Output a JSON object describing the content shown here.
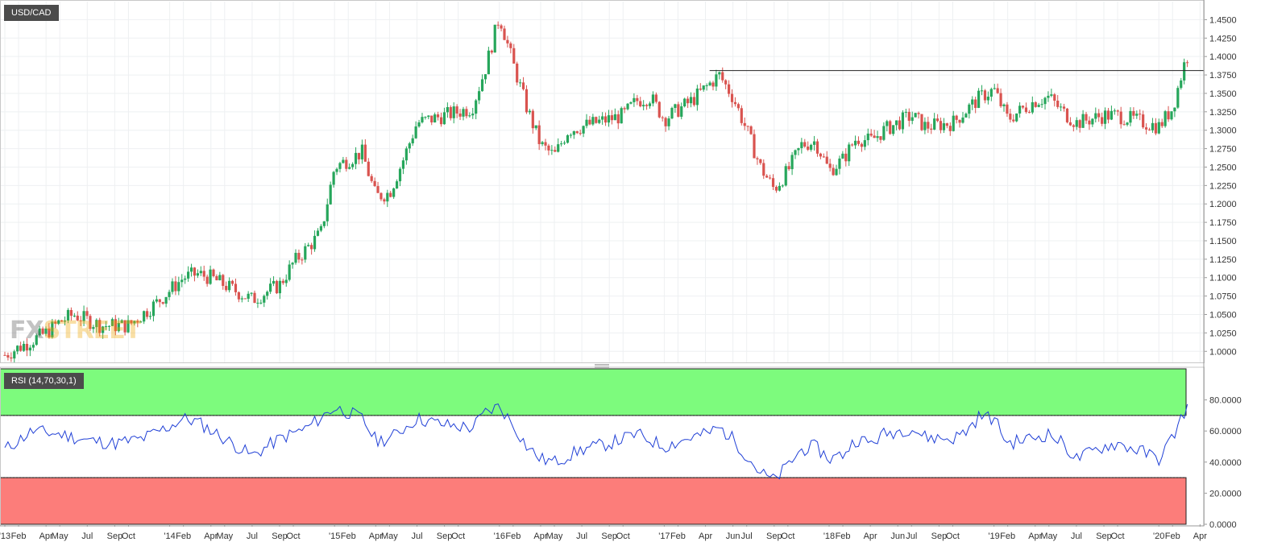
{
  "colors": {
    "up": "#26a65b",
    "down": "#d9534f",
    "rsi_line": "#1f3fd6",
    "overbought_fill": "#7dfb7d",
    "oversold_fill": "#fc7d7a",
    "grid": "#eef0f2",
    "axis_text": "#333333",
    "watermark_fx": "#555555",
    "watermark_street": "#f0a500"
  },
  "watermark": {
    "fx": "FX",
    "street": "STREET"
  },
  "chart_data": [
    {
      "type": "candlestick",
      "title": "USD/CAD",
      "frequency": "weekly",
      "y_ticks": [
        "1.0000",
        "1.0250",
        "1.0500",
        "1.0750",
        "1.1000",
        "1.1250",
        "1.1500",
        "1.1750",
        "1.2000",
        "1.2250",
        "1.2500",
        "1.2750",
        "1.3000",
        "1.3250",
        "1.3500",
        "1.3750",
        "1.4000",
        "1.4250",
        "1.4500"
      ],
      "ylim": [
        0.985,
        1.4745
      ],
      "horizontal_line": {
        "value": 1.381,
        "from": "'17 Apr",
        "to": "'20 Mar"
      },
      "anchors": [
        {
          "month": 0,
          "close": 0.995
        },
        {
          "month": 3,
          "close": 1.025
        },
        {
          "month": 4,
          "close": 1.04
        },
        {
          "month": 5,
          "close": 1.05
        },
        {
          "month": 7,
          "close": 1.035
        },
        {
          "month": 9,
          "close": 1.035
        },
        {
          "month": 11,
          "close": 1.065
        },
        {
          "month": 13,
          "close": 1.1
        },
        {
          "month": 14,
          "close": 1.105
        },
        {
          "month": 15,
          "close": 1.1
        },
        {
          "month": 16,
          "close": 1.09
        },
        {
          "month": 18,
          "close": 1.07
        },
        {
          "month": 20,
          "close": 1.09
        },
        {
          "month": 21,
          "close": 1.12
        },
        {
          "month": 23,
          "close": 1.16
        },
        {
          "month": 24,
          "close": 1.25
        },
        {
          "month": 25,
          "close": 1.26
        },
        {
          "month": 26,
          "close": 1.27
        },
        {
          "month": 27,
          "close": 1.21
        },
        {
          "month": 28,
          "close": 1.215
        },
        {
          "month": 29,
          "close": 1.26
        },
        {
          "month": 30,
          "close": 1.31
        },
        {
          "month": 32,
          "close": 1.32
        },
        {
          "month": 34,
          "close": 1.33
        },
        {
          "month": 35,
          "close": 1.385
        },
        {
          "month": 36,
          "close": 1.455
        },
        {
          "month": 37,
          "close": 1.39
        },
        {
          "month": 38,
          "close": 1.33
        },
        {
          "month": 39,
          "close": 1.28
        },
        {
          "month": 40,
          "close": 1.265
        },
        {
          "month": 41,
          "close": 1.3
        },
        {
          "month": 43,
          "close": 1.31
        },
        {
          "month": 45,
          "close": 1.32
        },
        {
          "month": 46,
          "close": 1.34
        },
        {
          "month": 47,
          "close": 1.345
        },
        {
          "month": 48,
          "close": 1.315
        },
        {
          "month": 50,
          "close": 1.34
        },
        {
          "month": 52,
          "close": 1.375
        },
        {
          "month": 53,
          "close": 1.345
        },
        {
          "month": 54,
          "close": 1.3
        },
        {
          "month": 55,
          "close": 1.25
        },
        {
          "month": 56,
          "close": 1.22
        },
        {
          "month": 57,
          "close": 1.245
        },
        {
          "month": 58,
          "close": 1.28
        },
        {
          "month": 59,
          "close": 1.285
        },
        {
          "month": 60,
          "close": 1.245
        },
        {
          "month": 61,
          "close": 1.26
        },
        {
          "month": 62,
          "close": 1.29
        },
        {
          "month": 63,
          "close": 1.285
        },
        {
          "month": 64,
          "close": 1.3
        },
        {
          "month": 66,
          "close": 1.32
        },
        {
          "month": 67,
          "close": 1.305
        },
        {
          "month": 69,
          "close": 1.31
        },
        {
          "month": 71,
          "close": 1.345
        },
        {
          "month": 72,
          "close": 1.355
        },
        {
          "month": 73,
          "close": 1.315
        },
        {
          "month": 75,
          "close": 1.34
        },
        {
          "month": 76,
          "close": 1.345
        },
        {
          "month": 77,
          "close": 1.325
        },
        {
          "month": 78,
          "close": 1.31
        },
        {
          "month": 80,
          "close": 1.32
        },
        {
          "month": 81,
          "close": 1.32
        },
        {
          "month": 83,
          "close": 1.31
        },
        {
          "month": 84,
          "close": 1.305
        },
        {
          "month": 85,
          "close": 1.33
        },
        {
          "month": 86,
          "close": 1.4
        }
      ],
      "rsi_14": [
        {
          "month": 0,
          "value": 48
        },
        {
          "month": 2,
          "value": 60
        },
        {
          "month": 4,
          "value": 58
        },
        {
          "month": 6,
          "value": 54
        },
        {
          "month": 8,
          "value": 52
        },
        {
          "month": 10,
          "value": 55
        },
        {
          "month": 12,
          "value": 63
        },
        {
          "month": 13,
          "value": 68
        },
        {
          "month": 14,
          "value": 66
        },
        {
          "month": 16,
          "value": 55
        },
        {
          "month": 18,
          "value": 44
        },
        {
          "month": 20,
          "value": 55
        },
        {
          "month": 22,
          "value": 62
        },
        {
          "month": 24,
          "value": 75
        },
        {
          "month": 25,
          "value": 72
        },
        {
          "month": 26,
          "value": 68
        },
        {
          "month": 27,
          "value": 54
        },
        {
          "month": 28,
          "value": 55
        },
        {
          "month": 30,
          "value": 68
        },
        {
          "month": 32,
          "value": 64
        },
        {
          "month": 34,
          "value": 62
        },
        {
          "month": 35,
          "value": 72
        },
        {
          "month": 36,
          "value": 76
        },
        {
          "month": 37,
          "value": 64
        },
        {
          "month": 38,
          "value": 50
        },
        {
          "month": 39,
          "value": 42
        },
        {
          "month": 40,
          "value": 40
        },
        {
          "month": 42,
          "value": 48
        },
        {
          "month": 44,
          "value": 52
        },
        {
          "month": 46,
          "value": 58
        },
        {
          "month": 48,
          "value": 50
        },
        {
          "month": 50,
          "value": 56
        },
        {
          "month": 51,
          "value": 58
        },
        {
          "month": 52,
          "value": 62
        },
        {
          "month": 53,
          "value": 55
        },
        {
          "month": 54,
          "value": 44
        },
        {
          "month": 55,
          "value": 33
        },
        {
          "month": 56,
          "value": 28
        },
        {
          "month": 57,
          "value": 38
        },
        {
          "month": 58,
          "value": 48
        },
        {
          "month": 59,
          "value": 50
        },
        {
          "month": 60,
          "value": 42
        },
        {
          "month": 61,
          "value": 45
        },
        {
          "month": 62,
          "value": 55
        },
        {
          "month": 63,
          "value": 52
        },
        {
          "month": 64,
          "value": 58
        },
        {
          "month": 66,
          "value": 62
        },
        {
          "month": 67,
          "value": 56
        },
        {
          "month": 69,
          "value": 55
        },
        {
          "month": 70,
          "value": 60
        },
        {
          "month": 71,
          "value": 70
        },
        {
          "month": 72,
          "value": 68
        },
        {
          "month": 73,
          "value": 52
        },
        {
          "month": 75,
          "value": 56
        },
        {
          "month": 76,
          "value": 58
        },
        {
          "month": 77,
          "value": 52
        },
        {
          "month": 78,
          "value": 42
        },
        {
          "month": 80,
          "value": 50
        },
        {
          "month": 81,
          "value": 52
        },
        {
          "month": 83,
          "value": 46
        },
        {
          "month": 84,
          "value": 42
        },
        {
          "month": 85,
          "value": 56
        },
        {
          "month": 86,
          "value": 75
        }
      ],
      "x_ticks": [
        {
          "label": "'13",
          "month": 0
        },
        {
          "label": "Feb",
          "month": 1
        },
        {
          "label": "Apr",
          "month": 3
        },
        {
          "label": "May",
          "month": 4
        },
        {
          "label": "Jul",
          "month": 6
        },
        {
          "label": "Sep",
          "month": 8
        },
        {
          "label": "Oct",
          "month": 9
        },
        {
          "label": "'14",
          "month": 12
        },
        {
          "label": "Feb",
          "month": 13
        },
        {
          "label": "Apr",
          "month": 15
        },
        {
          "label": "May",
          "month": 16
        },
        {
          "label": "Jul",
          "month": 18
        },
        {
          "label": "Sep",
          "month": 20
        },
        {
          "label": "Oct",
          "month": 21
        },
        {
          "label": "'15",
          "month": 24
        },
        {
          "label": "Feb",
          "month": 25
        },
        {
          "label": "Apr",
          "month": 27
        },
        {
          "label": "May",
          "month": 28
        },
        {
          "label": "Jul",
          "month": 30
        },
        {
          "label": "Sep",
          "month": 32
        },
        {
          "label": "Oct",
          "month": 33
        },
        {
          "label": "'16",
          "month": 36
        },
        {
          "label": "Feb",
          "month": 37
        },
        {
          "label": "Apr",
          "month": 39
        },
        {
          "label": "May",
          "month": 40
        },
        {
          "label": "Jul",
          "month": 42
        },
        {
          "label": "Sep",
          "month": 44
        },
        {
          "label": "Oct",
          "month": 45
        },
        {
          "label": "'17",
          "month": 48
        },
        {
          "label": "Feb",
          "month": 49
        },
        {
          "label": "Apr",
          "month": 51
        },
        {
          "label": "Jun",
          "month": 53
        },
        {
          "label": "Jul",
          "month": 54
        },
        {
          "label": "Sep",
          "month": 56
        },
        {
          "label": "Oct",
          "month": 57
        },
        {
          "label": "'18",
          "month": 60
        },
        {
          "label": "Feb",
          "month": 61
        },
        {
          "label": "Apr",
          "month": 63
        },
        {
          "label": "Jun",
          "month": 65
        },
        {
          "label": "Jul",
          "month": 66
        },
        {
          "label": "Sep",
          "month": 68
        },
        {
          "label": "Oct",
          "month": 69
        },
        {
          "label": "'19",
          "month": 72
        },
        {
          "label": "Feb",
          "month": 73
        },
        {
          "label": "Apr",
          "month": 75
        },
        {
          "label": "May",
          "month": 76
        },
        {
          "label": "Jul",
          "month": 78
        },
        {
          "label": "Sep",
          "month": 80
        },
        {
          "label": "Oct",
          "month": 81
        },
        {
          "label": "'20",
          "month": 84
        },
        {
          "label": "Feb",
          "month": 85
        },
        {
          "label": "Apr",
          "month": 87
        }
      ]
    },
    {
      "type": "line",
      "title": "RSI (14,70,30,1)",
      "y_ticks": [
        "0.0000",
        "20.0000",
        "40.0000",
        "60.0000",
        "80.0000"
      ],
      "ylim": [
        0,
        100
      ],
      "overbought": 70,
      "oversold": 30
    }
  ]
}
